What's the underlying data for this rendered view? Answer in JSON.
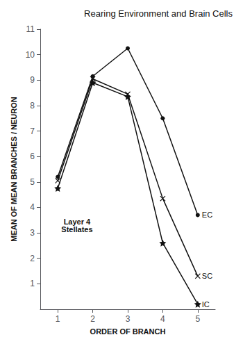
{
  "chart_data": {
    "type": "line",
    "title": "Rearing Environment and Brain Cells",
    "xlabel": "ORDER OF BRANCH",
    "ylabel": "MEAN OF MEAN BRANCHES / NEURON",
    "x": [
      1,
      2,
      3,
      4,
      5
    ],
    "series": [
      {
        "name": "EC",
        "color": "#111111",
        "marker": "circle",
        "values": [
          5.2,
          9.15,
          10.25,
          7.5,
          3.7
        ]
      },
      {
        "name": "SC",
        "color": "#111111",
        "marker": "x",
        "values": [
          5.05,
          9.05,
          8.45,
          4.35,
          1.3
        ]
      },
      {
        "name": "IC",
        "color": "#111111",
        "marker": "star",
        "values": [
          4.75,
          8.9,
          8.35,
          2.6,
          0.2
        ]
      }
    ],
    "xlim": [
      0.5,
      5.5
    ],
    "ylim": [
      0,
      11
    ],
    "xticks": [
      1,
      2,
      3,
      4,
      5
    ],
    "yticks": [
      1,
      2,
      3,
      4,
      5,
      6,
      7,
      8,
      9,
      10,
      11
    ],
    "grid": false,
    "annotations": [
      {
        "text": "Layer 4\nStellates",
        "x": 1.55,
        "y": 2.85
      }
    ]
  }
}
